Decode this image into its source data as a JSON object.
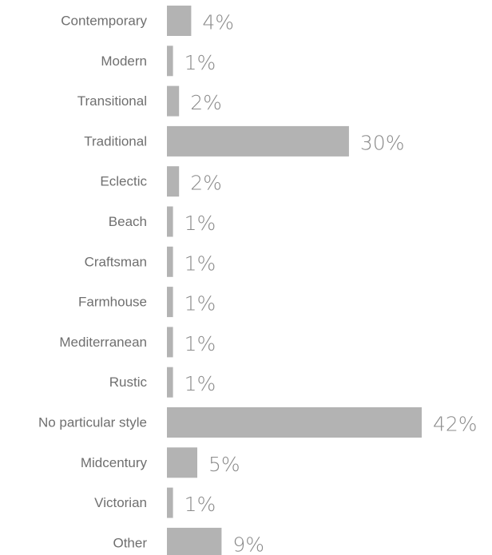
{
  "colors": {
    "bar": "#b3b3b3",
    "category_text": "#6f6f6f",
    "value_text": "#8a8a8a",
    "background": "#ffffff"
  },
  "chart_data": {
    "type": "bar",
    "orientation": "horizontal",
    "title": "",
    "xlabel": "",
    "ylabel": "",
    "grid": false,
    "legend": "none",
    "xlim": [
      0,
      42
    ],
    "value_suffix": "%",
    "categories": [
      "Contemporary",
      "Modern",
      "Transitional",
      "Traditional",
      "Eclectic",
      "Beach",
      "Craftsman",
      "Farmhouse",
      "Mediterranean",
      "Rustic",
      "No particular style",
      "Midcentury",
      "Victorian",
      "Other"
    ],
    "values": [
      4,
      1,
      2,
      30,
      2,
      1,
      1,
      1,
      1,
      1,
      42,
      5,
      1,
      9
    ],
    "value_labels": [
      "4%",
      "1%",
      "2%",
      "30%",
      "2%",
      "1%",
      "1%",
      "1%",
      "1%",
      "1%",
      "42%",
      "5%",
      "1%",
      "9%"
    ]
  }
}
